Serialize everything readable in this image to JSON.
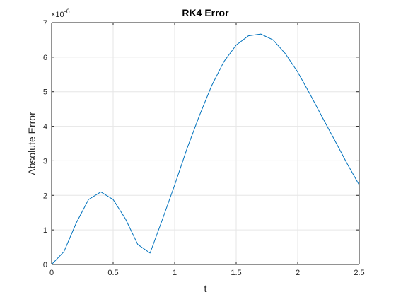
{
  "chart_data": {
    "type": "line",
    "title": "RK4 Error",
    "xlabel": "t",
    "ylabel": "Absolute Error",
    "y_exponent_prefix": "×10",
    "y_exponent": "-6",
    "xlim": [
      0,
      2.5
    ],
    "ylim": [
      0,
      7
    ],
    "xticks": [
      0,
      0.5,
      1,
      1.5,
      2,
      2.5
    ],
    "xtick_labels": [
      "0",
      "0.5",
      "1",
      "1.5",
      "2",
      "2.5"
    ],
    "yticks": [
      0,
      1,
      2,
      3,
      4,
      5,
      6,
      7
    ],
    "ytick_labels": [
      "0",
      "1",
      "2",
      "3",
      "4",
      "5",
      "6",
      "7"
    ],
    "grid": true,
    "line_color": "#0072BD",
    "series": [
      {
        "x": [
          0,
          0.1,
          0.2,
          0.3,
          0.4,
          0.5,
          0.6,
          0.7,
          0.8,
          0.9,
          1.0,
          1.1,
          1.2,
          1.3,
          1.4,
          1.5,
          1.6,
          1.7,
          1.8,
          1.9,
          2.0,
          2.1,
          2.2,
          2.3,
          2.4,
          2.5
        ],
        "values": [
          0,
          0.37,
          1.2,
          1.88,
          2.1,
          1.88,
          1.32,
          0.58,
          0.33,
          1.3,
          2.3,
          3.35,
          4.3,
          5.17,
          5.87,
          6.35,
          6.62,
          6.67,
          6.5,
          6.1,
          5.57,
          4.93,
          4.26,
          3.6,
          2.93,
          2.3
        ]
      }
    ]
  }
}
